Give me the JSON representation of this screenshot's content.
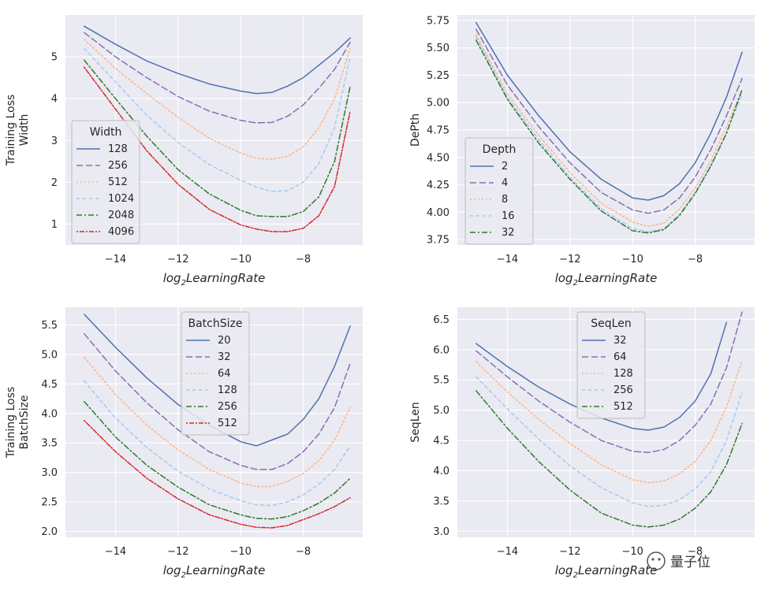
{
  "watermark": "量子位",
  "chart_data": [
    {
      "type": "line",
      "ylabel_lines": [
        "Training Loss",
        "Width"
      ],
      "xlabel_main": "log",
      "xlabel_sub": "2",
      "xlabel_rest": "LearningRate",
      "xlim": [
        -15.6,
        -6.1
      ],
      "ylim": [
        0.5,
        6.0
      ],
      "xticks": [
        -14,
        -12,
        -10,
        -8
      ],
      "xtick_labels": [
        "−14",
        "−12",
        "−10",
        "−8"
      ],
      "yticks": [
        1,
        2,
        3,
        4,
        5
      ],
      "ytick_labels": [
        "1",
        "2",
        "3",
        "4",
        "5"
      ],
      "legend": {
        "title": "Width",
        "position": "center-left"
      },
      "x": [
        -15,
        -14,
        -13,
        -12,
        -11,
        -10,
        -9.5,
        -9,
        -8.5,
        -8,
        -7.5,
        -7,
        -6.5
      ],
      "series": [
        {
          "name": "128",
          "values": [
            5.73,
            5.3,
            4.9,
            4.6,
            4.35,
            4.18,
            4.12,
            4.15,
            4.3,
            4.5,
            4.8,
            5.1,
            5.45
          ]
        },
        {
          "name": "256",
          "values": [
            5.58,
            5.0,
            4.5,
            4.05,
            3.7,
            3.48,
            3.42,
            3.43,
            3.58,
            3.85,
            4.25,
            4.7,
            5.35
          ]
        },
        {
          "name": "512",
          "values": [
            5.42,
            4.72,
            4.12,
            3.55,
            3.05,
            2.7,
            2.57,
            2.55,
            2.62,
            2.85,
            3.3,
            4.0,
            5.2
          ]
        },
        {
          "name": "1024",
          "values": [
            5.2,
            4.4,
            3.6,
            2.95,
            2.42,
            2.05,
            1.88,
            1.78,
            1.8,
            2.0,
            2.45,
            3.3,
            5.0
          ]
        },
        {
          "name": "2048",
          "values": [
            4.92,
            4.0,
            3.1,
            2.3,
            1.72,
            1.33,
            1.2,
            1.18,
            1.18,
            1.3,
            1.65,
            2.5,
            4.3
          ]
        },
        {
          "name": "4096",
          "values": [
            4.75,
            3.75,
            2.75,
            1.95,
            1.35,
            0.98,
            0.88,
            0.82,
            0.82,
            0.9,
            1.2,
            1.9,
            3.7
          ]
        }
      ]
    },
    {
      "type": "line",
      "ylabel_lines": [
        "DePth"
      ],
      "xlabel_main": "log",
      "xlabel_sub": "2",
      "xlabel_rest": "LearningRate",
      "xlim": [
        -15.6,
        -6.1
      ],
      "ylim": [
        3.7,
        5.8
      ],
      "xticks": [
        -14,
        -12,
        -10,
        -8
      ],
      "xtick_labels": [
        "−14",
        "−12",
        "−10",
        "−8"
      ],
      "yticks": [
        3.75,
        4.0,
        4.25,
        4.5,
        4.75,
        5.0,
        5.25,
        5.5,
        5.75
      ],
      "ytick_labels": [
        "3.75",
        "4.00",
        "4.25",
        "4.50",
        "4.75",
        "5.00",
        "5.25",
        "5.50",
        "5.75"
      ],
      "legend": {
        "title": "Depth",
        "position": "bottom-left"
      },
      "x": [
        -15,
        -14,
        -13,
        -12,
        -11,
        -10,
        -9.5,
        -9,
        -8.5,
        -8,
        -7.5,
        -7,
        -6.5
      ],
      "series": [
        {
          "name": "2",
          "values": [
            5.73,
            5.25,
            4.88,
            4.55,
            4.3,
            4.13,
            4.11,
            4.15,
            4.26,
            4.45,
            4.72,
            5.05,
            5.46
          ]
        },
        {
          "name": "4",
          "values": [
            5.67,
            5.16,
            4.78,
            4.45,
            4.18,
            4.02,
            3.99,
            4.02,
            4.13,
            4.32,
            4.57,
            4.88,
            5.22
          ]
        },
        {
          "name": "8",
          "values": [
            5.62,
            5.08,
            4.7,
            4.36,
            4.08,
            3.91,
            3.87,
            3.9,
            4.03,
            4.22,
            4.47,
            4.78,
            5.12
          ]
        },
        {
          "name": "16",
          "values": [
            5.6,
            5.05,
            4.66,
            4.32,
            4.03,
            3.85,
            3.82,
            3.85,
            3.98,
            4.18,
            4.43,
            4.72,
            5.08
          ]
        },
        {
          "name": "32",
          "values": [
            5.57,
            5.03,
            4.63,
            4.3,
            4.01,
            3.83,
            3.81,
            3.84,
            3.97,
            4.17,
            4.42,
            4.72,
            5.12
          ]
        }
      ]
    },
    {
      "type": "line",
      "ylabel_lines": [
        "Training Loss",
        "BatchSize"
      ],
      "xlabel_main": "log",
      "xlabel_sub": "2",
      "xlabel_rest": "LearningRate",
      "xlim": [
        -15.6,
        -6.1
      ],
      "ylim": [
        1.9,
        5.8
      ],
      "xticks": [
        -14,
        -12,
        -10,
        -8
      ],
      "xtick_labels": [
        "−14",
        "−12",
        "−10",
        "−8"
      ],
      "yticks": [
        2.0,
        2.5,
        3.0,
        3.5,
        4.0,
        4.5,
        5.0,
        5.5
      ],
      "ytick_labels": [
        "2.0",
        "2.5",
        "3.0",
        "3.5",
        "4.0",
        "4.5",
        "5.0",
        "5.5"
      ],
      "legend": {
        "title": "BatchSize",
        "position": "top-center"
      },
      "x": [
        -15,
        -14,
        -13,
        -12,
        -11,
        -10,
        -9.5,
        -9,
        -8.5,
        -8,
        -7.5,
        -7,
        -6.5
      ],
      "series": [
        {
          "name": "20",
          "values": [
            5.68,
            5.12,
            4.6,
            4.15,
            3.8,
            3.52,
            3.45,
            3.55,
            3.65,
            3.9,
            4.25,
            4.8,
            5.48
          ]
        },
        {
          "name": "32",
          "values": [
            5.35,
            4.72,
            4.18,
            3.72,
            3.35,
            3.12,
            3.05,
            3.05,
            3.15,
            3.35,
            3.65,
            4.1,
            4.85
          ]
        },
        {
          "name": "64",
          "values": [
            4.95,
            4.32,
            3.8,
            3.38,
            3.05,
            2.82,
            2.76,
            2.76,
            2.85,
            2.98,
            3.2,
            3.55,
            4.1
          ]
        },
        {
          "name": "128",
          "values": [
            4.55,
            3.92,
            3.42,
            3.02,
            2.72,
            2.52,
            2.45,
            2.44,
            2.5,
            2.62,
            2.8,
            3.05,
            3.45
          ]
        },
        {
          "name": "256",
          "values": [
            4.2,
            3.6,
            3.12,
            2.75,
            2.45,
            2.28,
            2.22,
            2.21,
            2.25,
            2.35,
            2.48,
            2.65,
            2.9
          ]
        },
        {
          "name": "512",
          "values": [
            3.88,
            3.35,
            2.9,
            2.55,
            2.28,
            2.12,
            2.07,
            2.06,
            2.1,
            2.2,
            2.3,
            2.42,
            2.57
          ]
        }
      ]
    },
    {
      "type": "line",
      "ylabel_lines": [
        "SeqLen"
      ],
      "xlabel_main": "log",
      "xlabel_sub": "2",
      "xlabel_rest": "LearningRate",
      "xlim": [
        -15.6,
        -6.1
      ],
      "ylim": [
        2.9,
        6.7
      ],
      "xticks": [
        -14,
        -12,
        -10,
        -8
      ],
      "xtick_labels": [
        "−14",
        "−12",
        "−10",
        "−8"
      ],
      "yticks": [
        3.0,
        3.5,
        4.0,
        4.5,
        5.0,
        5.5,
        6.0,
        6.5
      ],
      "ytick_labels": [
        "3.0",
        "3.5",
        "4.0",
        "4.5",
        "5.0",
        "5.5",
        "6.0",
        "6.5"
      ],
      "legend": {
        "title": "SeqLen",
        "position": "top-center"
      },
      "x": [
        -15,
        -14,
        -13,
        -12,
        -11,
        -10,
        -9.5,
        -9,
        -8.5,
        -8,
        -7.5,
        -7,
        -6.5
      ],
      "series": [
        {
          "name": "32",
          "values": [
            6.1,
            5.72,
            5.38,
            5.1,
            4.87,
            4.7,
            4.67,
            4.72,
            4.88,
            5.15,
            5.6,
            6.45,
            null
          ]
        },
        {
          "name": "64",
          "values": [
            5.98,
            5.55,
            5.15,
            4.8,
            4.5,
            4.32,
            4.3,
            4.35,
            4.5,
            4.75,
            5.1,
            5.7,
            6.62
          ]
        },
        {
          "name": "128",
          "values": [
            5.8,
            5.3,
            4.85,
            4.45,
            4.1,
            3.85,
            3.8,
            3.83,
            3.95,
            4.15,
            4.5,
            5.05,
            5.82
          ]
        },
        {
          "name": "256",
          "values": [
            5.55,
            5.02,
            4.52,
            4.08,
            3.72,
            3.47,
            3.41,
            3.43,
            3.52,
            3.7,
            3.98,
            4.5,
            5.3
          ]
        },
        {
          "name": "512",
          "values": [
            5.32,
            4.7,
            4.15,
            3.68,
            3.3,
            3.1,
            3.07,
            3.1,
            3.2,
            3.38,
            3.65,
            4.1,
            4.78
          ]
        }
      ]
    }
  ],
  "colors": [
    "#4c72b0",
    "#8172b2",
    "#ffb482",
    "#a1c9f4",
    "#2c7a2c",
    "#d62728"
  ],
  "dashes": [
    "",
    "8,4",
    "2,3",
    "4,4",
    "7,3,2,3",
    "2,2,6,2"
  ],
  "panel_bg": "#eaeaf2",
  "grid_color": "#ffffff"
}
